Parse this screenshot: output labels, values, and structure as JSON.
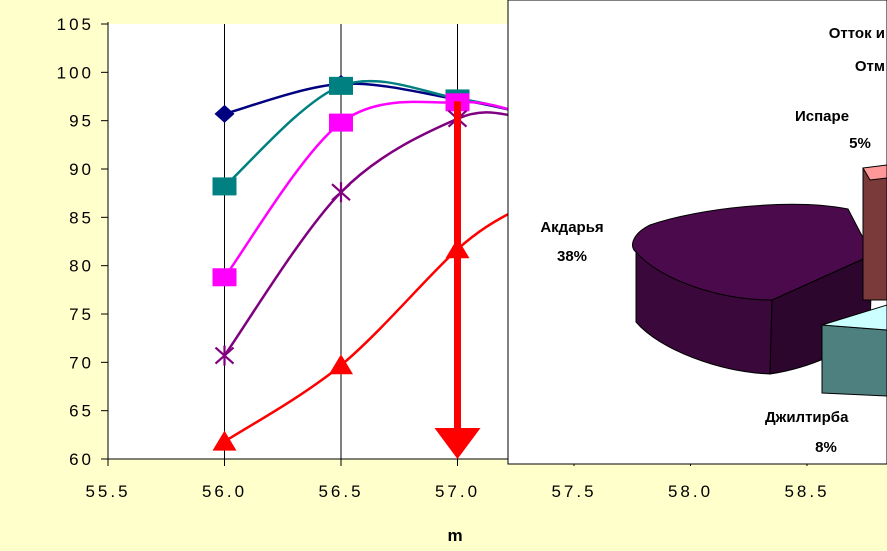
{
  "chart_data": [
    {
      "type": "line",
      "xlabel": "m",
      "ylabel": "",
      "xlim": [
        55.5,
        59.0
      ],
      "ylim": [
        60,
        105
      ],
      "x_ticks": [
        "55.5",
        "56.0",
        "56.5",
        "57.0",
        "57.5",
        "58.0",
        "58.5"
      ],
      "y_ticks": [
        "60",
        "65",
        "70",
        "75",
        "80",
        "85",
        "90",
        "95",
        "100",
        "105"
      ],
      "grid": "vertical",
      "series": [
        {
          "color": "#000080",
          "marker": "diamond",
          "x": [
            56.0,
            56.5,
            57.0,
            57.25
          ],
          "y": [
            95.7,
            98.8,
            97.2,
            96.0
          ]
        },
        {
          "color": "#008080",
          "marker": "square",
          "x": [
            56.0,
            56.5,
            57.0,
            57.25
          ],
          "y": [
            88.2,
            98.6,
            97.3,
            96.0
          ]
        },
        {
          "color": "#ff00ff",
          "marker": "square",
          "x": [
            56.0,
            56.5,
            57.0,
            57.25
          ],
          "y": [
            78.8,
            94.8,
            96.9,
            96.0
          ]
        },
        {
          "color": "#800080",
          "marker": "star",
          "x": [
            56.0,
            56.5,
            57.0,
            57.25
          ],
          "y": [
            70.7,
            87.6,
            95.2,
            95.5
          ]
        },
        {
          "color": "#ff0000",
          "marker": "triangle",
          "x": [
            56.0,
            56.5,
            57.0,
            57.25
          ],
          "y": [
            61.8,
            69.7,
            81.7,
            85.8
          ]
        }
      ],
      "annotations": [
        {
          "kind": "vertical-arrow",
          "color": "#ff0000",
          "x": 57.0,
          "y_from": 97.0,
          "y_to": 60
        }
      ]
    },
    {
      "type": "pie",
      "title_lines": [
        "Отток и",
        "Отм"
      ],
      "slices": [
        {
          "label": "Акдарья",
          "percent": "38%",
          "value": 38,
          "color": "#4b0a4b"
        },
        {
          "label": "Испаре",
          "percent": "5%",
          "value": 5,
          "color": "#ff9999"
        },
        {
          "label": "Джилтирба",
          "percent": "8%",
          "value": 8,
          "color": "#ccffff"
        }
      ]
    }
  ]
}
